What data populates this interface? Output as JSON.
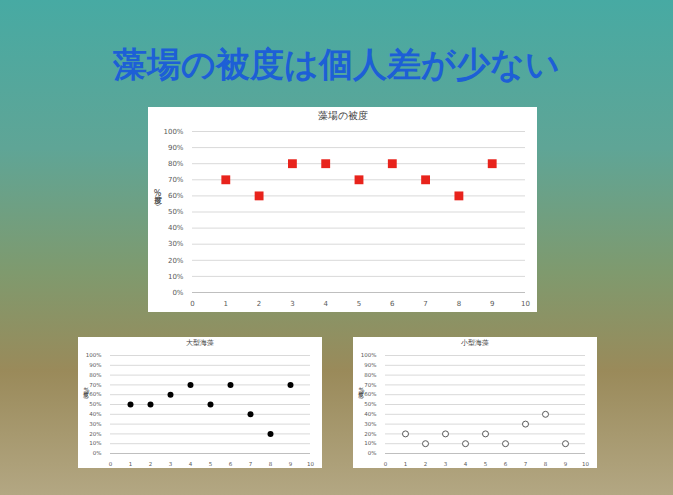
{
  "title": "藻場の被度は個人差が少ない",
  "chart_data": [
    {
      "type": "scatter",
      "title": "藻場の被度",
      "x": [
        1,
        2,
        3,
        4,
        5,
        6,
        7,
        8,
        9
      ],
      "values": [
        70,
        60,
        80,
        80,
        70,
        80,
        70,
        60,
        80
      ],
      "color": "#e8231c",
      "marker": "square",
      "ylabel": "被度（%）",
      "xlim": [
        0,
        10
      ],
      "xticks": [
        0,
        1,
        2,
        3,
        4,
        5,
        6,
        7,
        8,
        9,
        10
      ],
      "ylim": [
        0,
        100
      ],
      "yticks": [
        {
          "value": 0,
          "label": "0%"
        },
        {
          "value": 10,
          "label": "10%"
        },
        {
          "value": 20,
          "label": "20%"
        },
        {
          "value": 30,
          "label": "30%"
        },
        {
          "value": 40,
          "label": "40%"
        },
        {
          "value": 50,
          "label": "50%"
        },
        {
          "value": 60,
          "label": "60%"
        },
        {
          "value": 70,
          "label": "70%"
        },
        {
          "value": 80,
          "label": "80%"
        },
        {
          "value": 90,
          "label": "90%"
        },
        {
          "value": 100,
          "label": "100%"
        }
      ],
      "grid": true
    },
    {
      "type": "scatter",
      "title": "大型海藻",
      "x": [
        1,
        2,
        3,
        4,
        5,
        6,
        7,
        8,
        9
      ],
      "values": [
        50,
        50,
        60,
        70,
        50,
        70,
        40,
        20,
        70
      ],
      "color": "#000000",
      "marker": "circle",
      "ylabel": "被度（%）",
      "xlim": [
        0,
        10
      ],
      "xticks": [
        0,
        1,
        2,
        3,
        4,
        5,
        6,
        7,
        8,
        9,
        10
      ],
      "ylim": [
        0,
        100
      ],
      "yticks": [
        {
          "value": 0,
          "label": "0%"
        },
        {
          "value": 10,
          "label": "10%"
        },
        {
          "value": 20,
          "label": "20%"
        },
        {
          "value": 30,
          "label": "30%"
        },
        {
          "value": 40,
          "label": "40%"
        },
        {
          "value": 50,
          "label": "50%"
        },
        {
          "value": 60,
          "label": "60%"
        },
        {
          "value": 70,
          "label": "70%"
        },
        {
          "value": 80,
          "label": "80%"
        },
        {
          "value": 90,
          "label": "90%"
        },
        {
          "value": 100,
          "label": "100%"
        }
      ],
      "grid": true
    },
    {
      "type": "scatter",
      "title": "小型海藻",
      "x": [
        1,
        2,
        3,
        4,
        5,
        6,
        7,
        8,
        9
      ],
      "values": [
        20,
        10,
        20,
        10,
        20,
        10,
        30,
        40,
        10
      ],
      "color": "#595959",
      "marker": "circle-open",
      "ylabel": "被度（%）",
      "xlim": [
        0,
        10
      ],
      "xticks": [
        0,
        1,
        2,
        3,
        4,
        5,
        6,
        7,
        8,
        9,
        10
      ],
      "ylim": [
        0,
        100
      ],
      "yticks": [
        {
          "value": 0,
          "label": "0%"
        },
        {
          "value": 10,
          "label": "10%"
        },
        {
          "value": 20,
          "label": "20%"
        },
        {
          "value": 30,
          "label": "30%"
        },
        {
          "value": 40,
          "label": "40%"
        },
        {
          "value": 50,
          "label": "50%"
        },
        {
          "value": 60,
          "label": "60%"
        },
        {
          "value": 70,
          "label": "70%"
        },
        {
          "value": 80,
          "label": "80%"
        },
        {
          "value": 90,
          "label": "90%"
        },
        {
          "value": 100,
          "label": "100%"
        }
      ],
      "grid": true
    }
  ]
}
